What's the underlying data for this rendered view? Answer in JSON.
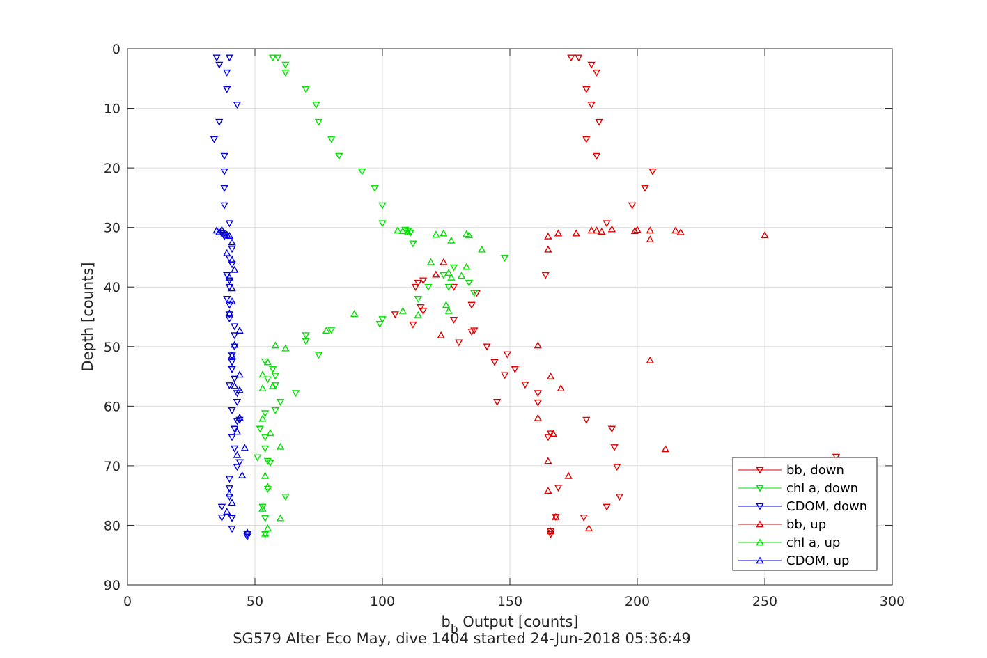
{
  "chart_data": {
    "type": "scatter",
    "xlabel": {
      "main": "b",
      "sub": "b",
      "rest": " Output [counts]"
    },
    "ylabel": "Depth [counts]",
    "subtitle": "SG579 Alter Eco May, dive 1404 started 24-Jun-2018 05:36:49",
    "xlim": [
      0,
      300
    ],
    "ylim": [
      0,
      90
    ],
    "y_reversed": true,
    "grid": true,
    "xticks": [
      "0",
      "50",
      "100",
      "150",
      "200",
      "250",
      "300"
    ],
    "yticks": [
      "0",
      "10",
      "20",
      "30",
      "40",
      "50",
      "60",
      "70",
      "80",
      "90"
    ],
    "legend_position": "bottom-right",
    "series": [
      {
        "name": "bb, down",
        "color": "#e00000",
        "marker": "triangle-down",
        "points": [
          [
            174,
            1.5
          ],
          [
            177,
            1.5
          ],
          [
            182,
            2.7
          ],
          [
            184,
            4
          ],
          [
            180,
            6.8
          ],
          [
            182,
            9.4
          ],
          [
            185,
            12.3
          ],
          [
            180,
            15.2
          ],
          [
            184,
            18
          ],
          [
            206,
            20.6
          ],
          [
            203,
            23.4
          ],
          [
            198,
            26.3
          ],
          [
            188,
            29.3
          ],
          [
            164,
            38
          ],
          [
            113,
            40
          ],
          [
            114,
            39.3
          ],
          [
            116,
            38.9
          ],
          [
            128,
            40
          ],
          [
            137,
            41
          ],
          [
            135,
            43
          ],
          [
            128,
            45.5
          ],
          [
            115,
            43.4
          ],
          [
            116,
            44
          ],
          [
            105,
            44.6
          ],
          [
            112,
            46.3
          ],
          [
            136,
            47.3
          ],
          [
            135,
            47.5
          ],
          [
            130,
            49.3
          ],
          [
            141,
            50
          ],
          [
            149,
            51.3
          ],
          [
            144,
            52.6
          ],
          [
            152,
            53.8
          ],
          [
            148,
            54.8
          ],
          [
            156,
            56.4
          ],
          [
            161,
            57.8
          ],
          [
            145,
            59.3
          ],
          [
            161,
            59.4
          ],
          [
            180,
            62.3
          ],
          [
            190,
            63.8
          ],
          [
            166,
            64.6
          ],
          [
            165,
            65.2
          ],
          [
            191,
            66.9
          ],
          [
            192,
            70.2
          ],
          [
            169,
            73.7
          ],
          [
            193,
            75.2
          ],
          [
            188,
            76.9
          ],
          [
            179,
            78.7
          ],
          [
            168,
            78.6
          ],
          [
            166,
            81
          ],
          [
            166,
            81.5
          ],
          [
            278,
            68.5
          ]
        ]
      },
      {
        "name": "chl a, down",
        "color": "#00e000",
        "marker": "triangle-down",
        "points": [
          [
            57,
            1.5
          ],
          [
            59,
            1.5
          ],
          [
            62,
            2.7
          ],
          [
            62,
            4
          ],
          [
            70,
            6.8
          ],
          [
            74,
            9.4
          ],
          [
            75,
            12.3
          ],
          [
            80,
            15.2
          ],
          [
            83,
            18
          ],
          [
            92,
            20.6
          ],
          [
            97,
            23.4
          ],
          [
            100,
            26.3
          ],
          [
            100,
            29.3
          ],
          [
            109,
            30.4
          ],
          [
            110,
            30.6
          ],
          [
            111,
            30.9
          ],
          [
            112,
            32.7
          ],
          [
            128,
            36.7
          ],
          [
            148,
            35.1
          ],
          [
            134,
            39.3
          ],
          [
            136,
            41
          ],
          [
            126,
            40
          ],
          [
            118,
            40
          ],
          [
            114,
            42
          ],
          [
            124,
            38
          ],
          [
            100,
            45.4
          ],
          [
            99,
            46.2
          ],
          [
            70,
            48.1
          ],
          [
            70,
            49.1
          ],
          [
            75,
            51.4
          ],
          [
            80,
            47.2
          ],
          [
            54,
            52.5
          ],
          [
            57,
            53.8
          ],
          [
            58,
            54.9
          ],
          [
            55,
            55.5
          ],
          [
            58,
            56.5
          ],
          [
            60,
            59.3
          ],
          [
            54,
            61.2
          ],
          [
            58,
            60.7
          ],
          [
            66,
            57.8
          ],
          [
            52,
            63.8
          ],
          [
            54,
            65.2
          ],
          [
            54,
            67.1
          ],
          [
            55,
            69.2
          ],
          [
            56,
            69.5
          ],
          [
            51,
            68.6
          ],
          [
            55,
            73.9
          ],
          [
            53,
            76.9
          ],
          [
            54,
            78.8
          ],
          [
            62,
            75.2
          ],
          [
            54,
            81.5
          ]
        ]
      },
      {
        "name": "CDOM, down",
        "color": "#0000e0",
        "marker": "triangle-down",
        "points": [
          [
            35,
            1.5
          ],
          [
            40,
            1.5
          ],
          [
            36,
            2.7
          ],
          [
            39,
            4
          ],
          [
            39,
            6.8
          ],
          [
            43,
            9.4
          ],
          [
            36,
            12.3
          ],
          [
            34,
            15.2
          ],
          [
            38,
            18
          ],
          [
            38,
            20.6
          ],
          [
            38,
            23.4
          ],
          [
            38,
            26.3
          ],
          [
            40,
            29.3
          ],
          [
            37,
            31
          ],
          [
            38,
            31.5
          ],
          [
            41,
            33.6
          ],
          [
            40,
            35.2
          ],
          [
            41,
            36.2
          ],
          [
            39,
            38
          ],
          [
            40,
            38.9
          ],
          [
            40,
            40
          ],
          [
            39,
            42
          ],
          [
            40,
            43
          ],
          [
            40,
            44.6
          ],
          [
            40,
            45.3
          ],
          [
            42,
            46.6
          ],
          [
            42,
            48.1
          ],
          [
            42,
            50
          ],
          [
            41,
            51.5
          ],
          [
            41,
            52.6
          ],
          [
            41,
            53.8
          ],
          [
            42,
            55.4
          ],
          [
            40,
            56.5
          ],
          [
            43,
            57.8
          ],
          [
            43,
            59.3
          ],
          [
            41,
            60.7
          ],
          [
            44,
            62.3
          ],
          [
            43,
            62.5
          ],
          [
            42,
            63.8
          ],
          [
            41,
            65.2
          ],
          [
            42,
            67.1
          ],
          [
            44,
            69.4
          ],
          [
            43,
            70.2
          ],
          [
            40,
            72.2
          ],
          [
            40,
            73.8
          ],
          [
            40,
            75.2
          ],
          [
            37,
            76.9
          ],
          [
            37,
            78.7
          ],
          [
            41,
            78.8
          ],
          [
            41,
            80.6
          ],
          [
            47,
            81.5
          ],
          [
            47,
            81.9
          ]
        ]
      },
      {
        "name": "bb, up",
        "color": "#e00000",
        "marker": "triangle-up",
        "points": [
          [
            250,
            31.3
          ],
          [
            217,
            30.8
          ],
          [
            215,
            30.5
          ],
          [
            205,
            30.5
          ],
          [
            200,
            30.4
          ],
          [
            199,
            30.6
          ],
          [
            205,
            32
          ],
          [
            190,
            30.3
          ],
          [
            186,
            30.7
          ],
          [
            184,
            30.5
          ],
          [
            182,
            30.5
          ],
          [
            176,
            31
          ],
          [
            169,
            31
          ],
          [
            165,
            31.5
          ],
          [
            165,
            33.7
          ],
          [
            121,
            37.9
          ],
          [
            124,
            35.8
          ],
          [
            133,
            36.6
          ],
          [
            123,
            48.1
          ],
          [
            161,
            49.8
          ],
          [
            205,
            52.3
          ],
          [
            166,
            55
          ],
          [
            170,
            57
          ],
          [
            161,
            62
          ],
          [
            211,
            67.2
          ],
          [
            165,
            69.2
          ],
          [
            173,
            71.7
          ],
          [
            165,
            74.2
          ],
          [
            167,
            64.6
          ],
          [
            181,
            80.5
          ],
          [
            168,
            78.6
          ],
          [
            166,
            81
          ]
        ]
      },
      {
        "name": "chl a, up",
        "color": "#00e000",
        "marker": "triangle-up",
        "points": [
          [
            106,
            30.5
          ],
          [
            108,
            30.6
          ],
          [
            110,
            30.8
          ],
          [
            121,
            31.2
          ],
          [
            124,
            31
          ],
          [
            127,
            32.2
          ],
          [
            133,
            31.1
          ],
          [
            134,
            31.3
          ],
          [
            139,
            33.7
          ],
          [
            119,
            35.8
          ],
          [
            131,
            38.1
          ],
          [
            133,
            36.6
          ],
          [
            126,
            37.6
          ],
          [
            127,
            38.4
          ],
          [
            125,
            43
          ],
          [
            126,
            44
          ],
          [
            114,
            44.7
          ],
          [
            108,
            44
          ],
          [
            89,
            44.5
          ],
          [
            78,
            47.3
          ],
          [
            58,
            49.8
          ],
          [
            62,
            50.3
          ],
          [
            57,
            56.6
          ],
          [
            55,
            52.6
          ],
          [
            53,
            54.7
          ],
          [
            53,
            57
          ],
          [
            53,
            62.1
          ],
          [
            56,
            64.5
          ],
          [
            60,
            66.8
          ],
          [
            55,
            73.5
          ],
          [
            54,
            71.7
          ],
          [
            53,
            77.2
          ],
          [
            60,
            78.8
          ],
          [
            55,
            80.5
          ],
          [
            54,
            81.4
          ]
        ]
      },
      {
        "name": "CDOM, up",
        "color": "#0000e0",
        "marker": "triangle-up",
        "points": [
          [
            35,
            30.5
          ],
          [
            36,
            30.8
          ],
          [
            37,
            30.4
          ],
          [
            38,
            31
          ],
          [
            39,
            31.2
          ],
          [
            40,
            31.4
          ],
          [
            41,
            32.5
          ],
          [
            39,
            34.3
          ],
          [
            41,
            35.5
          ],
          [
            42,
            37.1
          ],
          [
            40,
            38.4
          ],
          [
            41,
            40.2
          ],
          [
            41,
            42.4
          ],
          [
            40,
            44.4
          ],
          [
            44,
            47.3
          ],
          [
            42,
            49.7
          ],
          [
            41,
            51.5
          ],
          [
            44,
            54.7
          ],
          [
            42,
            56.6
          ],
          [
            44,
            57.3
          ],
          [
            44,
            61.9
          ],
          [
            43,
            64.3
          ],
          [
            46,
            67
          ],
          [
            43,
            68.2
          ],
          [
            45,
            71.6
          ],
          [
            40,
            74.7
          ],
          [
            41,
            76.2
          ],
          [
            39,
            77.7
          ],
          [
            47,
            81.2
          ]
        ]
      }
    ]
  }
}
